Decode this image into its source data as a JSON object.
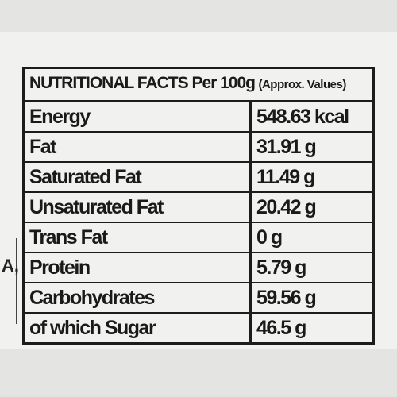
{
  "side_text": "A,",
  "header": {
    "title": "NUTRITIONAL FACTS Per 100g",
    "note": "(Approx. Values)"
  },
  "table": {
    "rows": [
      [
        "Energy",
        "548.63 kcal"
      ],
      [
        "Fat",
        "31.91 g"
      ],
      [
        "Saturated Fat",
        "11.49 g"
      ],
      [
        "Unsaturated Fat",
        "20.42 g"
      ],
      [
        "Trans Fat",
        "0 g"
      ],
      [
        "Protein",
        "5.79 g"
      ],
      [
        "Carbohydrates",
        "59.56 g"
      ],
      [
        "of which Sugar",
        "46.5 g"
      ]
    ]
  }
}
